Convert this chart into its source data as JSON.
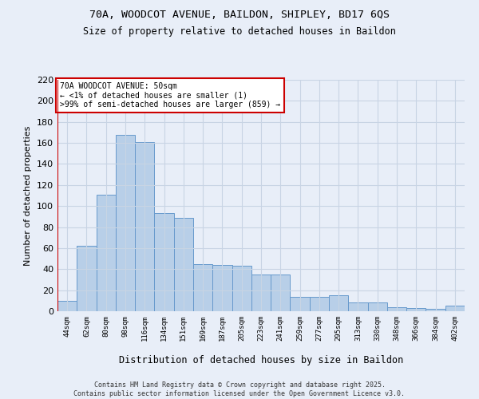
{
  "title1": "70A, WOODCOT AVENUE, BAILDON, SHIPLEY, BD17 6QS",
  "title2": "Size of property relative to detached houses in Baildon",
  "xlabel": "Distribution of detached houses by size in Baildon",
  "ylabel": "Number of detached properties",
  "categories": [
    "44sqm",
    "62sqm",
    "80sqm",
    "98sqm",
    "116sqm",
    "134sqm",
    "151sqm",
    "169sqm",
    "187sqm",
    "205sqm",
    "223sqm",
    "241sqm",
    "259sqm",
    "277sqm",
    "295sqm",
    "313sqm",
    "330sqm",
    "348sqm",
    "366sqm",
    "384sqm",
    "402sqm"
  ],
  "values": [
    10,
    62,
    111,
    168,
    161,
    93,
    89,
    45,
    44,
    43,
    35,
    35,
    14,
    14,
    15,
    8,
    8,
    4,
    3,
    2,
    5
  ],
  "bar_color": "#b8cfe8",
  "bar_edge_color": "#6699cc",
  "grid_color": "#c8d4e4",
  "background_color": "#e8eef8",
  "vline_color": "#cc0000",
  "annotation_text": "70A WOODCOT AVENUE: 50sqm\n← <1% of detached houses are smaller (1)\n>99% of semi-detached houses are larger (859) →",
  "annotation_box_color": "#ffffff",
  "annotation_box_edge": "#cc0000",
  "ylim": [
    0,
    220
  ],
  "yticks": [
    0,
    20,
    40,
    60,
    80,
    100,
    120,
    140,
    160,
    180,
    200,
    220
  ],
  "footer": "Contains HM Land Registry data © Crown copyright and database right 2025.\nContains public sector information licensed under the Open Government Licence v3.0.",
  "figsize": [
    6.0,
    5.0
  ],
  "dpi": 100
}
